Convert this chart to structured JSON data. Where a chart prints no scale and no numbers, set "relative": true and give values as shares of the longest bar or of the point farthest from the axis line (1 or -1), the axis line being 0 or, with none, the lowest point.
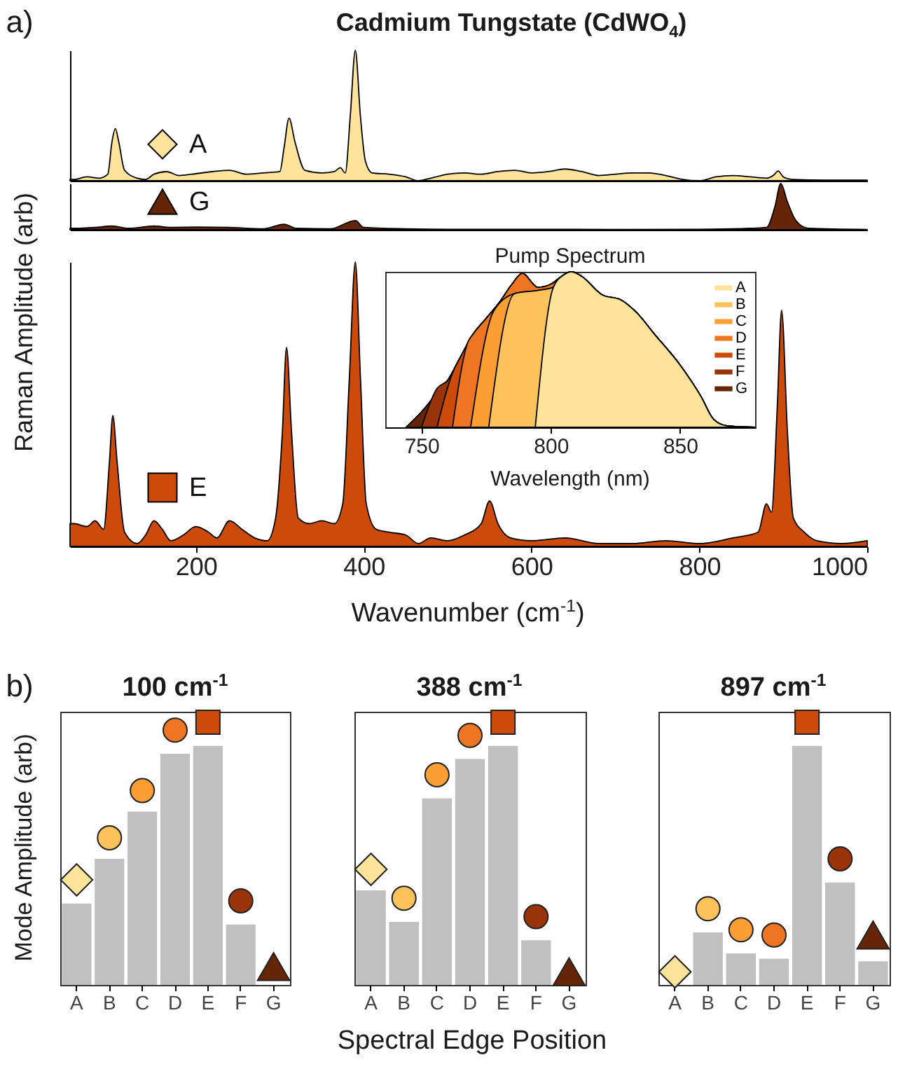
{
  "chart_data": [
    {
      "type": "area",
      "title": "Cadmium Tungstate (CdWO$_{4}$)",
      "annotations": [
        "a)"
      ],
      "relative": true,
      "xlim": [
        50,
        1000
      ],
      "tick_labels": false,
      "legend": "left",
      "series": [
        {
          "name": "A",
          "color": "#fde49a",
          "x": [
            50,
            55,
            70,
            85,
            95,
            100,
            104,
            108,
            115,
            130,
            140,
            150,
            165,
            180,
            195,
            220,
            240,
            260,
            280,
            300,
            305,
            311,
            318,
            330,
            350,
            365,
            372,
            378,
            384,
            390,
            396,
            402,
            410,
            430,
            450,
            465,
            480,
            500,
            520,
            540,
            560,
            580,
            600,
            620,
            640,
            660,
            680,
            700,
            720,
            740,
            760,
            780,
            800,
            820,
            840,
            860,
            880,
            888,
            894,
            900,
            910,
            950,
            1000
          ],
          "values": [
            0.01,
            0.01,
            0.03,
            0.02,
            0.05,
            0.3,
            0.4,
            0.3,
            0.08,
            0.02,
            0.01,
            0.05,
            0.07,
            0.04,
            0.05,
            0.07,
            0.08,
            0.05,
            0.06,
            0.07,
            0.25,
            0.48,
            0.3,
            0.08,
            0.06,
            0.07,
            0.1,
            0.06,
            0.5,
            1,
            0.5,
            0.15,
            0.06,
            0.05,
            0.03,
            0,
            0.02,
            0.05,
            0.06,
            0.05,
            0.07,
            0.08,
            0.06,
            0.07,
            0.09,
            0.07,
            0.04,
            0.05,
            0.06,
            0.06,
            0.04,
            0.01,
            0,
            0.03,
            0.04,
            0.03,
            0.02,
            0.04,
            0.075,
            0.03,
            0.01,
            0.005,
            0.005
          ]
        }
      ]
    },
    {
      "type": "area",
      "relative": true,
      "xlim": [
        50,
        1000
      ],
      "tick_labels": false,
      "legend": "left",
      "series": [
        {
          "name": "G",
          "color": "#662506",
          "x": [
            50,
            55,
            80,
            100,
            120,
            150,
            170,
            200,
            240,
            280,
            305,
            320,
            360,
            390,
            400,
            450,
            500,
            600,
            700,
            800,
            860,
            880,
            890,
            897,
            905,
            915,
            930,
            1000
          ],
          "values": [
            0.03,
            0.03,
            0.05,
            0.08,
            0.03,
            0.08,
            0.05,
            0.06,
            0.05,
            0.02,
            0.12,
            0.03,
            0.02,
            0.2,
            0.05,
            0.02,
            0.01,
            0.01,
            0.005,
            0.01,
            0.03,
            0.05,
            0.5,
            1,
            0.6,
            0.2,
            0.03,
            0.005
          ]
        }
      ]
    },
    {
      "type": "area",
      "relative": true,
      "xlim": [
        50,
        1000
      ],
      "xticks": [
        200,
        400,
        600,
        800,
        1000
      ],
      "xlabel": "Wavenumber (cm$^{-1}$)",
      "ylabel": "Raman Amplitude (arb)",
      "legend": "left",
      "series": [
        {
          "name": "E",
          "color": "#cc4a0a",
          "x": [
            50,
            55,
            70,
            80,
            90,
            97,
            101,
            106,
            115,
            130,
            140,
            150,
            160,
            170,
            185,
            200,
            215,
            225,
            240,
            255,
            270,
            285,
            295,
            303,
            308,
            314,
            322,
            335,
            350,
            365,
            375,
            383,
            390,
            396,
            403,
            415,
            430,
            450,
            465,
            480,
            500,
            520,
            540,
            550,
            560,
            575,
            600,
            640,
            680,
            720,
            760,
            800,
            840,
            870,
            880,
            886,
            893,
            898,
            905,
            912,
            925,
            940,
            970,
            1000
          ],
          "values": [
            0.08,
            0.08,
            0.07,
            0.09,
            0.06,
            0.3,
            0.46,
            0.3,
            0.05,
            0.01,
            0.04,
            0.09,
            0.06,
            0.02,
            0.04,
            0.07,
            0.05,
            0.03,
            0.09,
            0.06,
            0.03,
            0.02,
            0.1,
            0.4,
            0.7,
            0.4,
            0.1,
            0.08,
            0.09,
            0.08,
            0.15,
            0.6,
            1,
            0.6,
            0.15,
            0.06,
            0.05,
            0.04,
            0.01,
            0.03,
            0.02,
            0.04,
            0.08,
            0.16,
            0.08,
            0.03,
            0.02,
            0.03,
            0.01,
            0.01,
            0.02,
            0.01,
            0.03,
            0.05,
            0.15,
            0.12,
            0.5,
            0.83,
            0.4,
            0.1,
            0.05,
            0.02,
            0.01,
            0.02
          ]
        }
      ]
    },
    {
      "type": "area",
      "title": "Pump Spectrum",
      "xlabel": "Wavelength (nm)",
      "relative": true,
      "xlim": [
        736,
        879
      ],
      "xticks": [
        750,
        800,
        850
      ],
      "legend": "top right",
      "series": [
        {
          "name": "A",
          "color": "#fde49a",
          "x": [
            794,
            801,
            805,
            808,
            812,
            820,
            827,
            833,
            840,
            850,
            858,
            863,
            868,
            879
          ],
          "values": [
            0,
            0.9,
            0.98,
            1,
            0.97,
            0.85,
            0.82,
            0.74,
            0.6,
            0.4,
            0.2,
            0.05,
            0.01,
            0
          ]
        },
        {
          "name": "B",
          "color": "#fdc35a",
          "x": [
            776,
            786,
            795,
            801,
            805,
            808,
            812,
            820,
            827,
            833,
            840,
            850,
            858,
            863,
            868,
            879
          ],
          "values": [
            0,
            0.86,
            0.88,
            0.9,
            0.98,
            1,
            0.97,
            0.85,
            0.82,
            0.74,
            0.6,
            0.4,
            0.2,
            0.05,
            0.01,
            0
          ]
        },
        {
          "name": "C",
          "color": "#fb9f35",
          "x": [
            769,
            778,
            786,
            795,
            801,
            805,
            808,
            812,
            820,
            827,
            833,
            840,
            850,
            858,
            863,
            868,
            879
          ],
          "values": [
            0,
            0.75,
            0.86,
            0.88,
            0.9,
            0.98,
            1,
            0.97,
            0.85,
            0.82,
            0.74,
            0.6,
            0.4,
            0.2,
            0.05,
            0.01,
            0
          ]
        },
        {
          "name": "D",
          "color": "#ee7622",
          "x": [
            762,
            768,
            770,
            775,
            780,
            785,
            789,
            795,
            800,
            805,
            808,
            812,
            820,
            827,
            833,
            840,
            850,
            858,
            863,
            868,
            879
          ],
          "values": [
            0,
            0.55,
            0.6,
            0.7,
            0.8,
            0.92,
            0.99,
            0.9,
            0.92,
            0.98,
            1,
            0.97,
            0.85,
            0.82,
            0.74,
            0.6,
            0.4,
            0.2,
            0.05,
            0.01,
            0
          ]
        },
        {
          "name": "E",
          "color": "#cc4a0a",
          "x": [
            756,
            762,
            765,
            770,
            775,
            780,
            785,
            789,
            795,
            800,
            805,
            808,
            812,
            820,
            827,
            833,
            840,
            850,
            858,
            863,
            868,
            879
          ],
          "values": [
            0,
            0.35,
            0.45,
            0.6,
            0.7,
            0.8,
            0.92,
            0.99,
            0.9,
            0.92,
            0.98,
            1,
            0.97,
            0.85,
            0.82,
            0.74,
            0.6,
            0.4,
            0.2,
            0.05,
            0.01,
            0
          ]
        },
        {
          "name": "F",
          "color": "#993309",
          "x": [
            750,
            756,
            760,
            765,
            770,
            775,
            780,
            785,
            789,
            795,
            800,
            805,
            808,
            812,
            820,
            827,
            833,
            840,
            850,
            858,
            863,
            868,
            879
          ],
          "values": [
            0,
            0.25,
            0.3,
            0.45,
            0.6,
            0.7,
            0.8,
            0.92,
            0.99,
            0.9,
            0.92,
            0.98,
            1,
            0.97,
            0.85,
            0.82,
            0.74,
            0.6,
            0.4,
            0.2,
            0.05,
            0.01,
            0
          ]
        },
        {
          "name": "G",
          "color": "#662506",
          "x": [
            744,
            750,
            755,
            760,
            765,
            770,
            775,
            780,
            785,
            789,
            795,
            800,
            805,
            808,
            812,
            820,
            827,
            833,
            840,
            850,
            858,
            863,
            868,
            879
          ],
          "values": [
            0,
            0.1,
            0.2,
            0.3,
            0.45,
            0.6,
            0.7,
            0.8,
            0.92,
            0.99,
            0.9,
            0.92,
            0.98,
            1,
            0.97,
            0.85,
            0.82,
            0.74,
            0.6,
            0.4,
            0.2,
            0.05,
            0.01,
            0
          ]
        }
      ]
    },
    {
      "type": "bar",
      "title": "100 cm$^{-1}$",
      "ylabel": "Mode Amplitude (arb)",
      "annotations": [
        "b)"
      ],
      "relative": true,
      "categories": [
        "A",
        "B",
        "C",
        "D",
        "E",
        "F",
        "G"
      ],
      "series": [
        {
          "type": "bar",
          "color": "#c0c0c0",
          "values": [
            0.31,
            0.48,
            0.66,
            0.88,
            0.91,
            0.23,
            0
          ]
        },
        {
          "type": "scatter",
          "marker": "diamond",
          "colors": [
            "#fde49a",
            "#fdc35a",
            "#fb9f35",
            "#ee7622",
            "#cc4a0a",
            "#993309",
            "#662506"
          ],
          "values": [
            0.4,
            null,
            null,
            null,
            null,
            null,
            null
          ]
        },
        {
          "type": "scatter",
          "marker": "circle",
          "colors": [
            "#fde49a",
            "#fdc35a",
            "#fb9f35",
            "#ee7622",
            "#cc4a0a",
            "#993309",
            "#662506"
          ],
          "values": [
            null,
            0.56,
            0.74,
            0.97,
            null,
            0.32,
            null
          ]
        },
        {
          "type": "scatter",
          "marker": "square",
          "colors": [
            "#fde49a",
            "#fdc35a",
            "#fb9f35",
            "#ee7622",
            "#cc4a0a",
            "#993309",
            "#662506"
          ],
          "values": [
            null,
            null,
            null,
            null,
            1,
            null,
            null
          ]
        },
        {
          "type": "scatter",
          "marker": "triangle",
          "colors": [
            "#fde49a",
            "#fdc35a",
            "#fb9f35",
            "#ee7622",
            "#cc4a0a",
            "#993309",
            "#662506"
          ],
          "values": [
            null,
            null,
            null,
            null,
            null,
            null,
            0.07
          ]
        }
      ]
    },
    {
      "type": "bar",
      "title": "388 cm$^{-1}$",
      "xlabel": "Spectral Edge Position",
      "relative": true,
      "categories": [
        "A",
        "B",
        "C",
        "D",
        "E",
        "F",
        "G"
      ],
      "series": [
        {
          "type": "bar",
          "color": "#c0c0c0",
          "values": [
            0.36,
            0.24,
            0.71,
            0.86,
            0.91,
            0.17,
            0
          ]
        },
        {
          "type": "scatter",
          "marker": "diamond",
          "colors": [
            "#fde49a",
            "#fdc35a",
            "#fb9f35",
            "#ee7622",
            "#cc4a0a",
            "#993309",
            "#662506"
          ],
          "values": [
            0.44,
            null,
            null,
            null,
            null,
            null,
            null
          ]
        },
        {
          "type": "scatter",
          "marker": "circle",
          "colors": [
            "#fde49a",
            "#fdc35a",
            "#fb9f35",
            "#ee7622",
            "#cc4a0a",
            "#993309",
            "#662506"
          ],
          "values": [
            null,
            0.33,
            0.8,
            0.95,
            null,
            0.26,
            null
          ]
        },
        {
          "type": "scatter",
          "marker": "square",
          "colors": [
            "#fde49a",
            "#fdc35a",
            "#fb9f35",
            "#ee7622",
            "#cc4a0a",
            "#993309",
            "#662506"
          ],
          "values": [
            null,
            null,
            null,
            null,
            1,
            null,
            null
          ]
        },
        {
          "type": "scatter",
          "marker": "triangle",
          "colors": [
            "#fde49a",
            "#fdc35a",
            "#fb9f35",
            "#ee7622",
            "#cc4a0a",
            "#993309",
            "#662506"
          ],
          "values": [
            null,
            null,
            null,
            null,
            null,
            null,
            0.05
          ]
        }
      ]
    },
    {
      "type": "bar",
      "title": "897 cm$^{-1}$",
      "relative": true,
      "categories": [
        "A",
        "B",
        "C",
        "D",
        "E",
        "F",
        "G"
      ],
      "series": [
        {
          "type": "bar",
          "color": "#c0c0c0",
          "values": [
            0,
            0.2,
            0.12,
            0.1,
            0.91,
            0.39,
            0.09
          ]
        },
        {
          "type": "scatter",
          "marker": "diamond",
          "colors": [
            "#fde49a",
            "#fdc35a",
            "#fb9f35",
            "#ee7622",
            "#cc4a0a",
            "#993309",
            "#662506"
          ],
          "values": [
            0.05,
            null,
            null,
            null,
            null,
            null,
            null
          ]
        },
        {
          "type": "scatter",
          "marker": "circle",
          "colors": [
            "#fde49a",
            "#fdc35a",
            "#fb9f35",
            "#ee7622",
            "#cc4a0a",
            "#993309",
            "#662506"
          ],
          "values": [
            null,
            0.29,
            0.21,
            0.19,
            null,
            0.48,
            null
          ]
        },
        {
          "type": "scatter",
          "marker": "square",
          "colors": [
            "#fde49a",
            "#fdc35a",
            "#fb9f35",
            "#ee7622",
            "#cc4a0a",
            "#993309",
            "#662506"
          ],
          "values": [
            null,
            null,
            null,
            null,
            1,
            null,
            null
          ]
        },
        {
          "type": "scatter",
          "marker": "triangle",
          "colors": [
            "#fde49a",
            "#fdc35a",
            "#fb9f35",
            "#ee7622",
            "#cc4a0a",
            "#993309",
            "#662506"
          ],
          "values": [
            null,
            null,
            null,
            null,
            null,
            null,
            0.19
          ]
        }
      ]
    }
  ]
}
